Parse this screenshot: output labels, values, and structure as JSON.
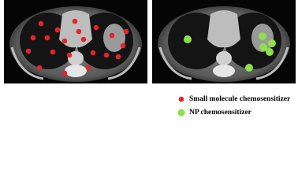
{
  "legend": [
    {
      "label": "Small molecule chemosensitizer"
    },
    {
      "label": "NP chemosensitizer"
    }
  ]
}
